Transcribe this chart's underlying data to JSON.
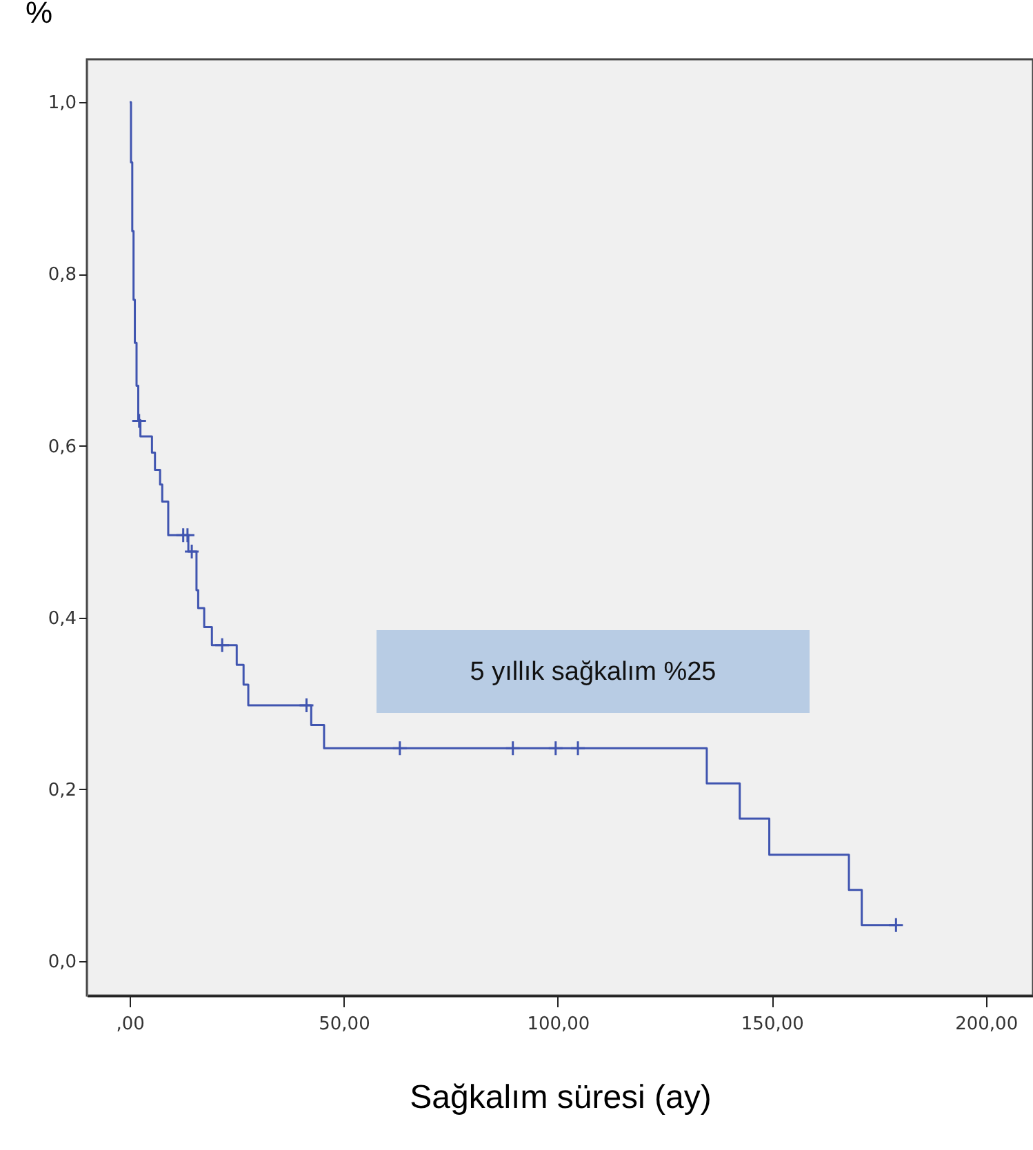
{
  "chart_data": {
    "type": "step",
    "xlabel": "Sağkalım süresi (ay)",
    "ylabel": "%",
    "xlim": [
      -10,
      211
    ],
    "ylim": [
      -0.04,
      1.05
    ],
    "xticks": [
      {
        "value": 0,
        "label": ",00"
      },
      {
        "value": 50,
        "label": "50,00"
      },
      {
        "value": 100,
        "label": "100,00"
      },
      {
        "value": 150,
        "label": "150,00"
      },
      {
        "value": 200,
        "label": "200,00"
      }
    ],
    "yticks": [
      {
        "value": 0,
        "label": "0,0"
      },
      {
        "value": 0.2,
        "label": "0,2"
      },
      {
        "value": 0.4,
        "label": "0,4"
      },
      {
        "value": 0.6,
        "label": "0,6"
      },
      {
        "value": 0.8,
        "label": "0,8"
      },
      {
        "value": 1.0,
        "label": "1,0"
      }
    ],
    "grid": false,
    "annotations": [
      "5 yıllık sağkalım %25"
    ],
    "series": [
      {
        "color": "#4055b0",
        "x": [
          0,
          0.3,
          0.6,
          0.9,
          1.2,
          1.6,
          2.0,
          2.5,
          5.2,
          5.9,
          7.1,
          7.6,
          9.0,
          13.7,
          15.6,
          16.0,
          17.4,
          19.2,
          25.0,
          26.6,
          27.7,
          42.4,
          45.4,
          134.8,
          142.5,
          149.4,
          168.0,
          171.0,
          179.0
        ],
        "values": [
          1.0,
          0.93,
          0.85,
          0.77,
          0.72,
          0.67,
          0.63,
          0.611,
          0.592,
          0.572,
          0.555,
          0.535,
          0.496,
          0.477,
          0.432,
          0.411,
          0.389,
          0.368,
          0.345,
          0.322,
          0.298,
          0.275,
          0.248,
          0.207,
          0.166,
          0.124,
          0.083,
          0.042,
          0.042
        ]
      },
      {
        "type": "scatter",
        "marker": "cross",
        "color": "#4055b0",
        "x": [
          2.2,
          12.5,
          13.5,
          14.5,
          21.6,
          41.3,
          63.1,
          89.5,
          99.5,
          104.7,
          179.0
        ],
        "values": [
          0.629,
          0.496,
          0.496,
          0.477,
          0.368,
          0.298,
          0.248,
          0.248,
          0.248,
          0.248,
          0.042
        ]
      }
    ]
  }
}
